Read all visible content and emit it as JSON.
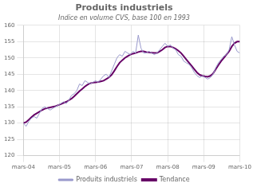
{
  "chart_data": {
    "type": "line",
    "title": "Produits industriels",
    "subtitle": "Indice en volume CVS, base 100 en 1993",
    "x": [
      0,
      0.074074,
      0.148148,
      0.222222,
      0.296296,
      0.37037,
      0.444444,
      0.518519,
      0.592593,
      0.666667,
      0.740741,
      0.814815,
      0.888889,
      0.962963,
      1.037037,
      1.111111,
      1.185185,
      1.259259,
      1.333333,
      1.407407,
      1.481481,
      1.555556,
      1.62963,
      1.703704,
      1.777778,
      1.851852,
      1.925926,
      2,
      2.074074,
      2.148148,
      2.222222,
      2.296296,
      2.37037,
      2.444444,
      2.518519,
      2.592593,
      2.666667,
      2.740741,
      2.814815,
      2.888889,
      2.962963,
      3.037037,
      3.111111,
      3.185185,
      3.259259,
      3.333333,
      3.407407,
      3.481481,
      3.555556,
      3.62963,
      3.703704,
      3.777778,
      3.851852,
      3.925926,
      4,
      4.074074,
      4.148148,
      4.222222,
      4.296296,
      4.37037,
      4.444444,
      4.518519,
      4.592593,
      4.666667,
      4.740741,
      4.814815,
      4.888889,
      4.962963,
      5.037037,
      5.111111,
      5.185185,
      5.259259,
      5.333333,
      5.407407,
      5.481481,
      5.555556,
      5.62963,
      5.703704,
      5.777778,
      5.851852,
      5.925926,
      6
    ],
    "series": [
      {
        "name": "Produits industriels",
        "color": "#9999cc",
        "values": [
          130.0,
          129.0,
          130.5,
          131.5,
          132.0,
          131.5,
          133.0,
          134.5,
          135.0,
          134.5,
          134.0,
          134.5,
          135.0,
          135.5,
          136.0,
          136.5,
          136.0,
          137.0,
          138.5,
          139.0,
          140.0,
          142.0,
          141.5,
          143.0,
          142.5,
          142.0,
          142.5,
          143.0,
          142.5,
          143.5,
          144.5,
          145.0,
          144.0,
          146.0,
          148.0,
          150.0,
          151.0,
          150.5,
          152.0,
          151.5,
          151.0,
          152.0,
          151.5,
          157.0,
          153.0,
          151.5,
          151.5,
          152.0,
          151.5,
          151.0,
          151.5,
          152.5,
          153.5,
          154.5,
          153.5,
          154.0,
          153.0,
          152.5,
          151.0,
          150.5,
          149.0,
          148.5,
          148.0,
          147.0,
          145.5,
          144.5,
          144.0,
          144.5,
          144.0,
          143.5,
          144.0,
          145.0,
          147.0,
          148.5,
          149.5,
          150.5,
          151.0,
          152.5,
          156.5,
          154.0,
          152.0,
          151.5
        ]
      },
      {
        "name": "Tendance",
        "color": "#660066",
        "values": [
          130.0,
          130.3,
          131.0,
          131.8,
          132.5,
          133.0,
          133.5,
          134.0,
          134.4,
          134.6,
          134.8,
          135.0,
          135.2,
          135.5,
          135.8,
          136.2,
          136.5,
          137.0,
          137.5,
          138.2,
          139.0,
          139.8,
          140.5,
          141.2,
          141.8,
          142.2,
          142.4,
          142.5,
          142.6,
          142.8,
          143.0,
          143.5,
          144.0,
          144.8,
          146.0,
          147.3,
          148.5,
          149.3,
          150.0,
          150.5,
          151.0,
          151.3,
          151.5,
          151.8,
          152.0,
          152.0,
          151.8,
          151.7,
          151.6,
          151.5,
          151.5,
          152.0,
          152.5,
          153.2,
          153.5,
          153.5,
          153.2,
          152.8,
          152.2,
          151.5,
          150.5,
          149.5,
          148.5,
          147.5,
          146.5,
          145.5,
          144.8,
          144.5,
          144.3,
          144.2,
          144.5,
          145.2,
          146.5,
          147.8,
          149.0,
          150.0,
          151.0,
          152.0,
          153.5,
          154.5,
          155.0,
          155.0
        ]
      }
    ],
    "xlim": [
      0,
      6
    ],
    "xticks": [
      {
        "value": 0,
        "label": "mars-04"
      },
      {
        "value": 1,
        "label": "mars-05"
      },
      {
        "value": 2,
        "label": "mars-06"
      },
      {
        "value": 3,
        "label": "mars-07"
      },
      {
        "value": 4,
        "label": "mars-08"
      },
      {
        "value": 5,
        "label": "mars-09"
      },
      {
        "value": 6,
        "label": "mars-10"
      }
    ],
    "ylim": [
      120,
      160
    ],
    "yticks": [
      120,
      125,
      130,
      135,
      140,
      145,
      150,
      155,
      160
    ],
    "grid": true,
    "legend": "bottom"
  }
}
